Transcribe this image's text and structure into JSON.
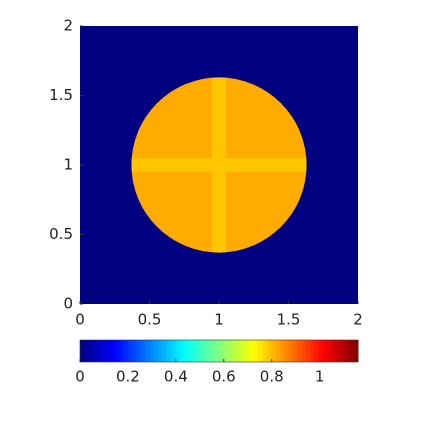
{
  "chart_data": {
    "type": "heatmap",
    "colormap": "jet",
    "xlim": [
      0,
      2
    ],
    "ylim": [
      0,
      2
    ],
    "xticks": [
      0,
      0.5,
      1,
      1.5,
      2
    ],
    "yticks": [
      0,
      0.5,
      1,
      1.5,
      2
    ],
    "clim": [
      0,
      1.16
    ],
    "cticks": [
      0,
      0.2,
      0.4,
      0.6,
      0.8,
      1
    ],
    "regions": [
      {
        "shape": "background",
        "value": 0
      },
      {
        "shape": "disk",
        "center_x": 1,
        "center_y": 1,
        "radius": 0.63,
        "value": 0.82
      },
      {
        "shape": "cross",
        "center_x": 1,
        "center_y": 1,
        "half_width": 0.05,
        "value": 0.79
      }
    ]
  }
}
